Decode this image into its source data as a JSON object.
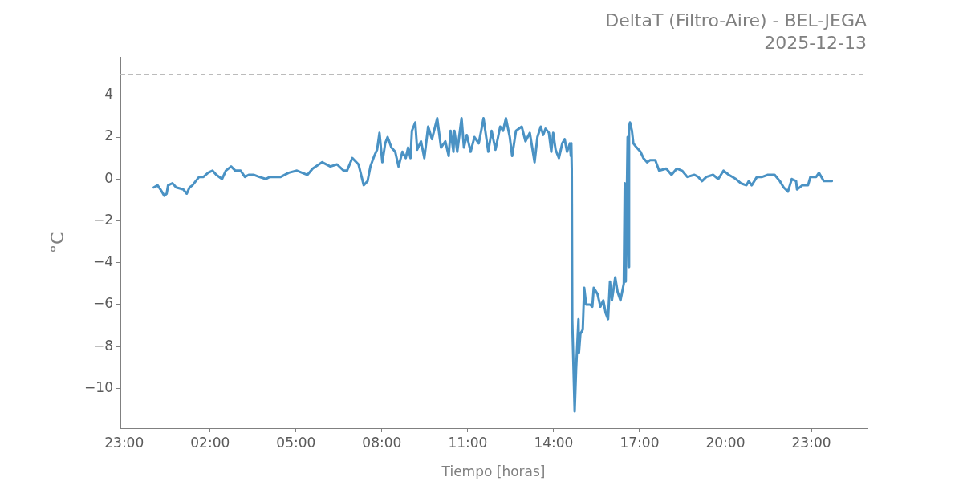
{
  "chart_data": {
    "type": "line",
    "title": "DeltaT (Filtro-Aire) - BEL-JEGA",
    "subtitle": "2025-12-13",
    "xlabel": "Tiempo [horas]",
    "ylabel": "°C",
    "color": "#4a92c4",
    "marker": "none",
    "x": [
      "2025-12-13T00:02",
      "2025-12-13T00:10",
      "2025-12-13T00:16",
      "2025-12-13T00:24",
      "2025-12-13T00:29",
      "2025-12-13T00:32",
      "2025-12-13T00:41",
      "2025-12-13T00:49",
      "2025-12-13T01:04",
      "2025-12-13T01:11",
      "2025-12-13T01:17",
      "2025-12-13T01:23",
      "2025-12-13T01:37",
      "2025-12-13T01:46",
      "2025-12-13T01:56",
      "2025-12-13T02:05",
      "2025-12-13T02:13",
      "2025-12-13T02:25",
      "2025-12-13T02:33",
      "2025-12-13T02:44",
      "2025-12-13T02:53",
      "2025-12-13T03:04",
      "2025-12-13T03:13",
      "2025-12-13T03:21",
      "2025-12-13T03:32",
      "2025-12-13T03:43",
      "2025-12-13T03:57",
      "2025-12-13T04:05",
      "2025-12-13T04:22",
      "2025-12-13T04:28",
      "2025-12-13T04:45",
      "2025-12-13T05:02",
      "2025-12-13T05:24",
      "2025-12-13T05:35",
      "2025-12-13T05:55",
      "2025-12-13T06:12",
      "2025-12-13T06:26",
      "2025-12-13T06:40",
      "2025-12-13T06:47",
      "2025-12-13T06:58",
      "2025-12-13T07:11",
      "2025-12-13T07:22",
      "2025-12-13T07:30",
      "2025-12-13T07:36",
      "2025-12-13T07:44",
      "2025-12-13T07:50",
      "2025-12-13T07:55",
      "2025-12-13T08:01",
      "2025-12-13T08:07",
      "2025-12-13T08:12",
      "2025-12-13T08:20",
      "2025-12-13T08:28",
      "2025-12-13T08:35",
      "2025-12-13T08:43",
      "2025-12-13T08:50",
      "2025-12-13T08:55",
      "2025-12-13T09:00",
      "2025-12-13T09:03",
      "2025-12-13T09:10",
      "2025-12-13T09:14",
      "2025-12-13T09:22",
      "2025-12-13T09:29",
      "2025-12-13T09:37",
      "2025-12-13T09:45",
      "2025-12-13T09:56",
      "2025-12-13T10:04",
      "2025-12-13T10:13",
      "2025-12-13T10:20",
      "2025-12-13T10:24",
      "2025-12-13T10:30",
      "2025-12-13T10:32",
      "2025-12-13T10:38",
      "2025-12-13T10:47",
      "2025-12-13T10:52",
      "2025-12-13T10:58",
      "2025-12-13T11:06",
      "2025-12-13T11:14",
      "2025-12-13T11:23",
      "2025-12-13T11:29",
      "2025-12-13T11:33",
      "2025-12-13T11:43",
      "2025-12-13T11:50",
      "2025-12-13T11:58",
      "2025-12-13T12:08",
      "2025-12-13T12:14",
      "2025-12-13T12:20",
      "2025-12-13T12:28",
      "2025-12-13T12:33",
      "2025-12-13T12:41",
      "2025-12-13T12:53",
      "2025-12-13T13:01",
      "2025-12-13T13:10",
      "2025-12-13T13:20",
      "2025-12-13T13:26",
      "2025-12-13T13:33",
      "2025-12-13T13:38",
      "2025-12-13T13:43",
      "2025-12-13T13:50",
      "2025-12-13T13:55",
      "2025-12-13T13:59",
      "2025-12-13T14:04",
      "2025-12-13T14:11",
      "2025-12-13T14:18",
      "2025-12-13T14:23",
      "2025-12-13T14:28",
      "2025-12-13T14:34",
      "2025-12-13T14:36",
      "2025-12-13T14:37",
      "2025-12-13T14:38",
      "2025-12-13T14:39",
      "2025-12-13T14:44",
      "2025-12-13T14:47",
      "2025-12-13T14:52",
      "2025-12-13T14:53",
      "2025-12-13T14:56",
      "2025-12-13T15:01",
      "2025-12-13T15:04",
      "2025-12-13T15:08",
      "2025-12-13T15:16",
      "2025-12-13T15:21",
      "2025-12-13T15:24",
      "2025-12-13T15:32",
      "2025-12-13T15:38",
      "2025-12-13T15:44",
      "2025-12-13T15:49",
      "2025-12-13T15:54",
      "2025-12-13T15:58",
      "2025-12-13T16:02",
      "2025-12-13T16:09",
      "2025-12-13T16:14",
      "2025-12-13T16:20",
      "2025-12-13T16:27",
      "2025-12-13T16:29",
      "2025-12-13T16:31",
      "2025-12-13T16:35",
      "2025-12-13T16:37",
      "2025-12-13T16:38",
      "2025-12-13T16:40",
      "2025-12-13T16:44",
      "2025-12-13T16:47",
      "2025-12-13T16:54",
      "2025-12-13T17:02",
      "2025-12-13T17:08",
      "2025-12-13T17:16",
      "2025-12-13T17:22",
      "2025-12-13T17:33",
      "2025-12-13T17:41",
      "2025-12-13T17:56",
      "2025-12-13T18:07",
      "2025-12-13T18:18",
      "2025-12-13T18:29",
      "2025-12-13T18:40",
      "2025-12-13T18:55",
      "2025-12-13T19:03",
      "2025-12-13T19:11",
      "2025-12-13T19:20",
      "2025-12-13T19:34",
      "2025-12-13T19:45",
      "2025-12-13T19:56",
      "2025-12-13T20:07",
      "2025-12-13T20:22",
      "2025-12-13T20:32",
      "2025-12-13T20:44",
      "2025-12-13T20:49",
      "2025-12-13T20:55",
      "2025-12-13T21:06",
      "2025-12-13T21:17",
      "2025-12-13T21:29",
      "2025-12-13T21:43",
      "2025-12-13T21:54",
      "2025-12-13T22:02",
      "2025-12-13T22:11",
      "2025-12-13T22:19",
      "2025-12-13T22:28",
      "2025-12-13T22:30",
      "2025-12-13T22:41",
      "2025-12-13T22:53",
      "2025-12-13T22:58",
      "2025-12-13T23:10",
      "2025-12-13T23:16",
      "2025-12-13T23:26",
      "2025-12-13T23:35",
      "2025-12-13T23:43"
    ],
    "values": [
      -0.4,
      -0.3,
      -0.5,
      -0.8,
      -0.7,
      -0.3,
      -0.2,
      -0.4,
      -0.5,
      -0.7,
      -0.4,
      -0.3,
      0.1,
      0.1,
      0.3,
      0.4,
      0.2,
      0.0,
      0.4,
      0.6,
      0.4,
      0.4,
      0.1,
      0.2,
      0.2,
      0.1,
      0.0,
      0.1,
      0.1,
      0.1,
      0.3,
      0.4,
      0.2,
      0.5,
      0.8,
      0.6,
      0.7,
      0.4,
      0.4,
      1.0,
      0.7,
      -0.3,
      -0.1,
      0.6,
      1.1,
      1.4,
      2.2,
      0.8,
      1.7,
      2.0,
      1.5,
      1.3,
      0.6,
      1.3,
      1.0,
      1.5,
      1.0,
      2.3,
      2.7,
      1.4,
      1.8,
      1.0,
      2.5,
      1.9,
      2.9,
      1.5,
      1.8,
      1.1,
      2.3,
      1.3,
      2.3,
      1.3,
      2.9,
      1.5,
      2.1,
      1.3,
      2.0,
      1.7,
      2.4,
      2.9,
      1.3,
      2.3,
      1.4,
      2.5,
      2.3,
      2.9,
      2.0,
      1.1,
      2.3,
      2.5,
      1.8,
      2.2,
      0.8,
      2.0,
      2.5,
      2.1,
      2.4,
      2.2,
      1.3,
      2.2,
      1.4,
      1.0,
      1.7,
      1.9,
      1.3,
      1.7,
      1.1,
      1.7,
      0.4,
      -6.8,
      -11.1,
      -9.1,
      -6.7,
      -8.3,
      -7.4,
      -7.2,
      -5.2,
      -6.0,
      -6.0,
      -6.1,
      -5.2,
      -5.5,
      -6.1,
      -5.8,
      -6.4,
      -6.7,
      -4.9,
      -5.8,
      -4.7,
      -5.4,
      -5.8,
      -5.0,
      -0.2,
      -4.9,
      2.0,
      -4.2,
      2.5,
      2.7,
      2.3,
      1.7,
      1.5,
      1.3,
      1.0,
      0.8,
      0.9,
      0.9,
      0.4,
      0.5,
      0.2,
      0.5,
      0.4,
      0.1,
      0.2,
      0.1,
      -0.1,
      0.1,
      0.2,
      0.0,
      0.4,
      0.2,
      0.0,
      -0.2,
      -0.3,
      -0.1,
      -0.3,
      0.1,
      0.1,
      0.2,
      0.2,
      -0.1,
      -0.4,
      -0.6,
      0.0,
      -0.1,
      -0.5,
      -0.3,
      -0.3,
      0.1,
      0.1,
      0.3,
      -0.1,
      -0.1,
      -0.1
    ],
    "xlim": [
      "2025-12-12T22:52",
      "2025-12-14T00:56"
    ],
    "ylim": [
      -11.9,
      5.8
    ],
    "xticks": [
      {
        "value": "2025-12-12T23:00",
        "label": "23:00"
      },
      {
        "value": "2025-12-13T02:00",
        "label": "02:00"
      },
      {
        "value": "2025-12-13T05:00",
        "label": "05:00"
      },
      {
        "value": "2025-12-13T08:00",
        "label": "08:00"
      },
      {
        "value": "2025-12-13T11:00",
        "label": "11:00"
      },
      {
        "value": "2025-12-13T14:00",
        "label": "14:00"
      },
      {
        "value": "2025-12-13T17:00",
        "label": "17:00"
      },
      {
        "value": "2025-12-13T20:00",
        "label": "20:00"
      },
      {
        "value": "2025-12-13T23:00",
        "label": "23:00"
      }
    ],
    "yticks": [
      {
        "value": -10,
        "label": "−10"
      },
      {
        "value": -8,
        "label": "−8"
      },
      {
        "value": -6,
        "label": "−6"
      },
      {
        "value": -4,
        "label": "−4"
      },
      {
        "value": -2,
        "label": "−2"
      },
      0,
      2,
      4
    ],
    "ref_lines": [
      {
        "axis": "y",
        "value": 5,
        "color": "#bbbbbb",
        "line_style": "dashed"
      }
    ]
  }
}
